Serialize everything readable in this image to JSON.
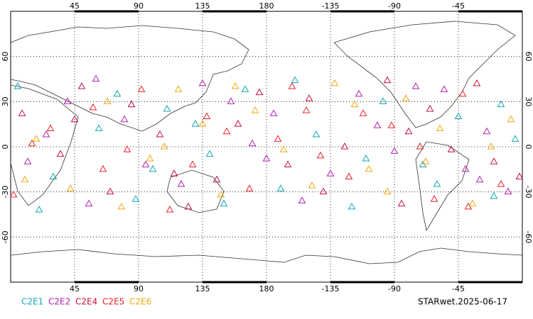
{
  "map": {
    "xticks": [
      45,
      90,
      135,
      180,
      {
        "value": 225,
        "label": "-135"
      },
      {
        "value": 270,
        "label": "-90"
      },
      {
        "value": 315,
        "label": "-45"
      }
    ],
    "xlim": [
      0,
      360
    ],
    "yticks": [
      60,
      30,
      0,
      -30,
      -60
    ],
    "ylim": [
      -90,
      90
    ],
    "grid": true,
    "series": [
      {
        "name": "C2E1",
        "color": "#10a8b0",
        "lon": [
          5,
          30,
          62,
          88,
          110,
          140,
          165,
          190,
          215,
          240,
          262,
          290,
          315,
          340,
          355,
          20,
          75,
          130,
          200,
          250,
          300,
          345,
          150,
          100
        ],
        "lat": [
          40,
          -20,
          12,
          -35,
          25,
          -5,
          38,
          -28,
          8,
          -40,
          30,
          -12,
          20,
          -33,
          5,
          -42,
          35,
          15,
          44,
          -8,
          -25,
          28,
          -38,
          -15
        ]
      },
      {
        "name": "C2E2",
        "color": "#b020b0",
        "lon": [
          12,
          40,
          55,
          80,
          120,
          135,
          170,
          185,
          225,
          245,
          270,
          285,
          320,
          335,
          350,
          25,
          95,
          155,
          205,
          258,
          305,
          330,
          60,
          180
        ],
        "lat": [
          -10,
          30,
          -38,
          18,
          -25,
          42,
          2,
          22,
          -18,
          35,
          -3,
          40,
          -15,
          10,
          -30,
          8,
          -12,
          30,
          -36,
          14,
          38,
          -22,
          45,
          -8
        ]
      },
      {
        "name": "C2E4",
        "color": "#c01040",
        "lon": [
          8,
          35,
          50,
          70,
          105,
          125,
          160,
          195,
          210,
          235,
          275,
          295,
          310,
          328,
          358,
          45,
          85,
          145,
          220,
          265,
          280,
          340,
          115,
          175
        ],
        "lat": [
          22,
          -5,
          40,
          -30,
          8,
          -40,
          15,
          -12,
          32,
          0,
          -38,
          25,
          -2,
          42,
          -20,
          18,
          28,
          -22,
          -30,
          44,
          10,
          -10,
          -18,
          36
        ]
      },
      {
        "name": "C2E5",
        "color": "#e8202a",
        "lon": [
          2,
          28,
          65,
          92,
          112,
          138,
          168,
          198,
          218,
          248,
          268,
          298,
          318,
          345,
          15,
          58,
          82,
          128,
          188,
          238,
          288,
          322,
          152,
          208
        ],
        "lat": [
          -32,
          12,
          -15,
          38,
          -42,
          20,
          -28,
          40,
          -6,
          22,
          14,
          -35,
          35,
          -25,
          2,
          26,
          -2,
          -12,
          5,
          -20,
          0,
          -40,
          10,
          24
        ]
      },
      {
        "name": "C2E6",
        "color": "#f0a810",
        "lon": [
          18,
          42,
          68,
          98,
          118,
          148,
          172,
          192,
          228,
          252,
          278,
          302,
          325,
          352,
          10,
          78,
          108,
          158,
          212,
          242,
          292,
          338,
          135,
          265
        ],
        "lat": [
          5,
          -28,
          30,
          -8,
          38,
          -32,
          24,
          -2,
          42,
          -15,
          32,
          12,
          -38,
          18,
          -22,
          -40,
          0,
          40,
          -26,
          28,
          -10,
          0,
          15,
          -30
        ]
      }
    ],
    "footer": "STARwet.2025-06-17"
  }
}
